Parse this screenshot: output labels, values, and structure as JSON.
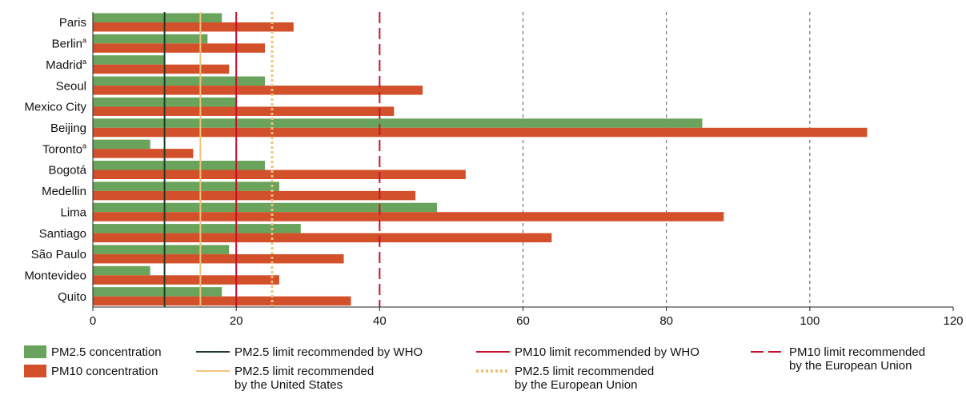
{
  "chart_data": {
    "type": "bar",
    "orientation": "horizontal",
    "categories": [
      "Paris",
      "Berlin",
      "Madrid",
      "Seoul",
      "Mexico City",
      "Beijing",
      "Toronto",
      "Bogotá",
      "Medellin",
      "Lima",
      "Santiago",
      "São Paulo",
      "Montevideo",
      "Quito"
    ],
    "category_superscripts": [
      "",
      "a",
      "a",
      "",
      "",
      "",
      "a",
      "",
      "",
      "",
      "",
      "",
      "",
      ""
    ],
    "series": [
      {
        "name": "PM2.5 concentration",
        "color": "#6aa35b",
        "values": [
          18,
          16,
          10,
          24,
          20,
          85,
          8,
          24,
          26,
          48,
          29,
          19,
          8,
          18
        ]
      },
      {
        "name": "PM10 concentration",
        "color": "#d2502a",
        "values": [
          28,
          24,
          19,
          46,
          42,
          108,
          14,
          52,
          45,
          88,
          64,
          35,
          26,
          36
        ]
      }
    ],
    "reference_lines": [
      {
        "label": [
          "PM2.5 limit recommended by WHO"
        ],
        "value": 10,
        "color": "#1f3a28",
        "style": "solid"
      },
      {
        "label": [
          "PM2.5 limit recommended",
          "by the United States"
        ],
        "value": 15,
        "color": "#f0c27a",
        "style": "solid"
      },
      {
        "label": [
          "PM10 limit recommended by WHO"
        ],
        "value": 20,
        "color": "#c8102e",
        "style": "solid"
      },
      {
        "label": [
          "PM2.5 limit recommended",
          "by the European Union"
        ],
        "value": 25,
        "color": "#f0c27a",
        "style": "dotted"
      },
      {
        "label": [
          "PM10 limit recommended",
          "by the European Union"
        ],
        "value": 40,
        "color": "#c8102e",
        "style": "dashed"
      }
    ],
    "gridlines": [
      60,
      80,
      100
    ],
    "xlim": [
      0,
      120
    ],
    "xticks": [
      0,
      20,
      40,
      60,
      80,
      100,
      120
    ],
    "legend_position": "bottom"
  }
}
